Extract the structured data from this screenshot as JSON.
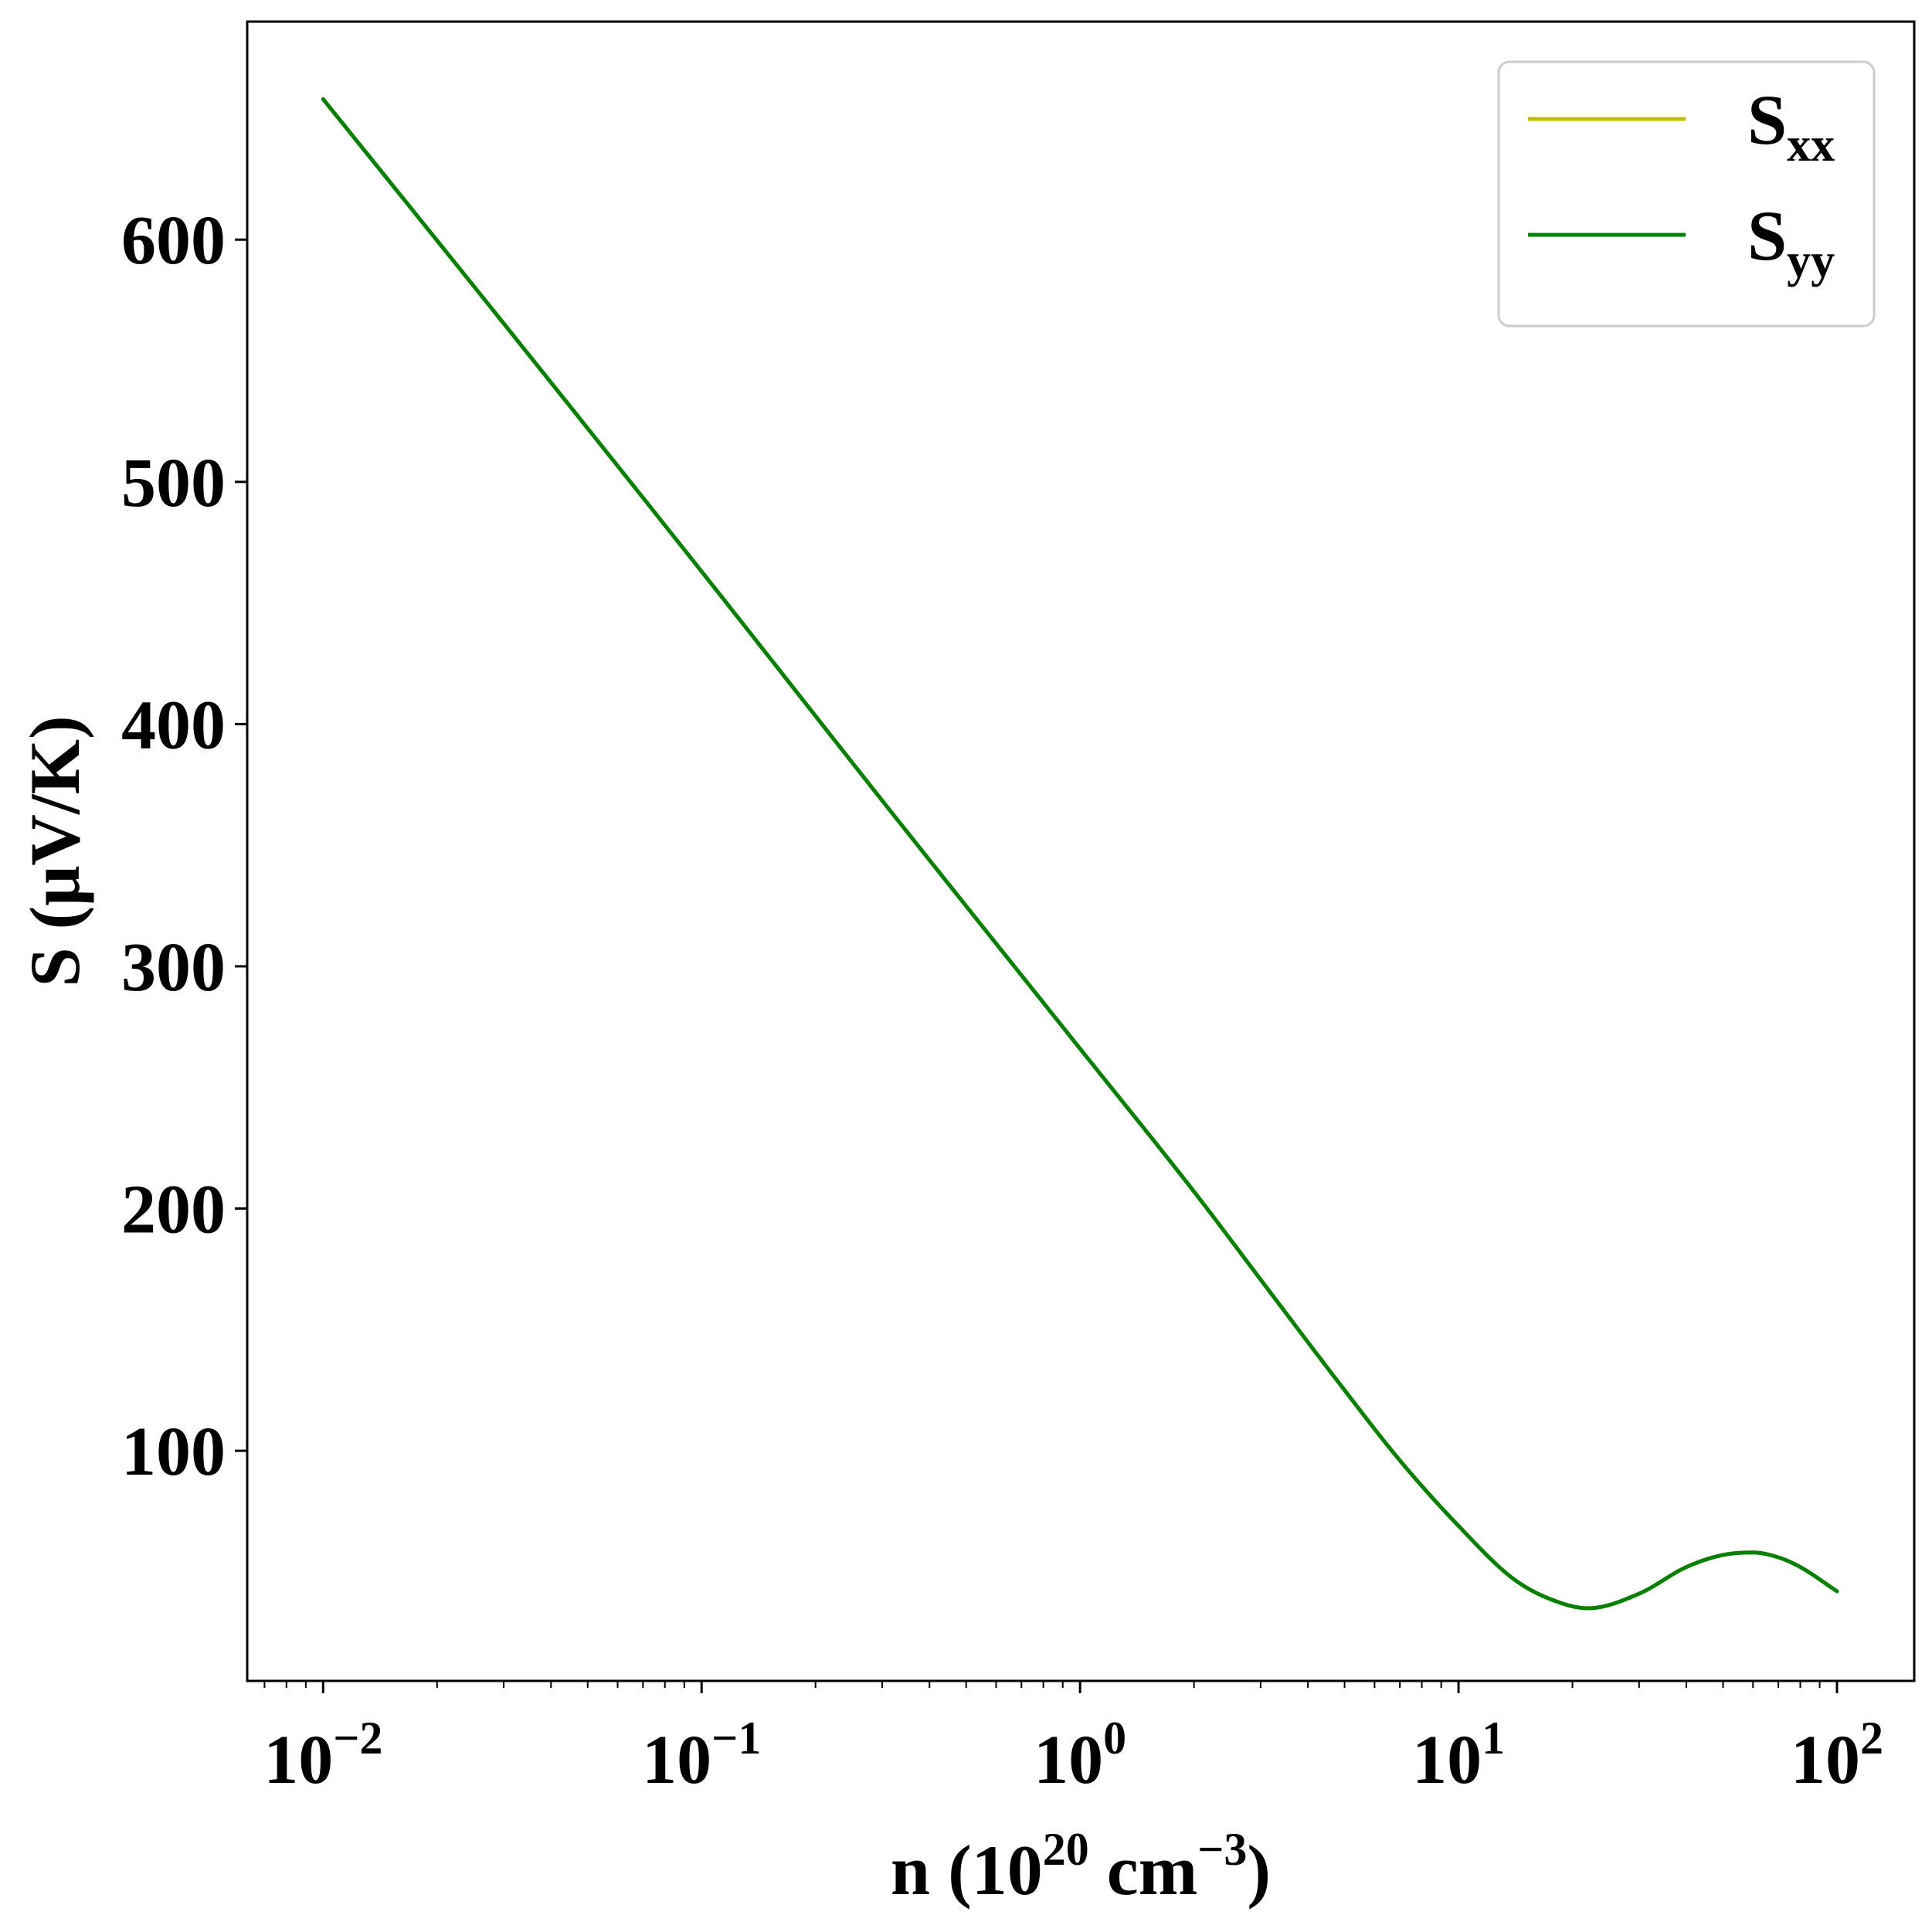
{
  "chart_data": {
    "type": "line",
    "title": "",
    "xlabel": {
      "base": "n (10",
      "exp": "20",
      "mid": " cm",
      "exp2": "−3",
      "end": ")"
    },
    "ylabel": "S (μV/K)",
    "xscale": "log",
    "xlim": [
      0.0063,
      160
    ],
    "ylim": [
      5,
      690
    ],
    "x_ticks": [
      {
        "value": 0.01,
        "base": "10",
        "exp": "−2"
      },
      {
        "value": 0.1,
        "base": "10",
        "exp": "−1"
      },
      {
        "value": 1,
        "base": "10",
        "exp": "0"
      },
      {
        "value": 10,
        "base": "10",
        "exp": "1"
      },
      {
        "value": 100,
        "base": "10",
        "exp": "2"
      }
    ],
    "y_ticks": [
      {
        "value": 100,
        "label": "100"
      },
      {
        "value": 200,
        "label": "200"
      },
      {
        "value": 300,
        "label": "300"
      },
      {
        "value": 400,
        "label": "400"
      },
      {
        "value": 500,
        "label": "500"
      },
      {
        "value": 600,
        "label": "600"
      }
    ],
    "legend_position": "upper right",
    "grid": false,
    "series": [
      {
        "name": {
          "base": "S",
          "sub": "xx"
        },
        "color": "#bfbf00",
        "x": [
          0.01,
          0.0316,
          0.1,
          0.316,
          1,
          2,
          3.16,
          5,
          7,
          10,
          14,
          18,
          22,
          30,
          40,
          50,
          60,
          70,
          80,
          100
        ],
        "y": [
          658,
          561,
          463,
          364,
          266,
          207,
          166,
          125,
          96,
          69,
          47,
          38,
          35,
          41,
          52,
          57,
          58,
          56,
          52,
          42
        ]
      },
      {
        "name": {
          "base": "S",
          "sub": "yy"
        },
        "color": "#008000",
        "x": [
          0.01,
          0.0316,
          0.1,
          0.316,
          1,
          2,
          3.16,
          5,
          7,
          10,
          14,
          18,
          22,
          30,
          40,
          50,
          60,
          70,
          80,
          100
        ],
        "y": [
          658,
          561,
          463,
          364,
          266,
          207,
          166,
          125,
          96,
          69,
          47,
          38,
          35,
          41,
          52,
          57,
          58,
          56,
          52,
          42
        ]
      }
    ]
  }
}
